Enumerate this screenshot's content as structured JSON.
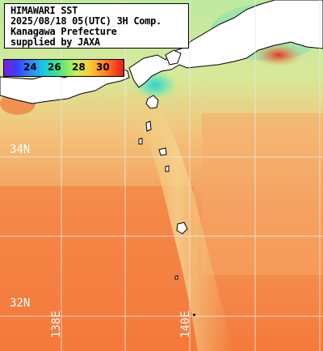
{
  "header": {
    "line1": "HIMAWARI SST",
    "line2": "2025/08/18 05(UTC) 3H Comp.",
    "line3": "Kanagawa Prefecture",
    "line4": "supplied by JAXA"
  },
  "colorbar": {
    "labels": [
      "24",
      "26",
      "28",
      "30"
    ],
    "colors": [
      "#7a1fd6",
      "#2d7bff",
      "#19c6e6",
      "#7fe86a",
      "#f5d23a",
      "#ff6a1e",
      "#e81c1c"
    ]
  },
  "grid": {
    "lat_labels": [
      "34N",
      "32N"
    ],
    "lon_labels": [
      "138E",
      "140E"
    ]
  },
  "colors": {
    "land": "#ffffff",
    "coast": "#000000",
    "grid": "#e8e8e8",
    "warm_sea": "#f28040",
    "mid_sea": "#f6b872",
    "cool_sea": "#c9ef8a",
    "cold_sea": "#4fd8c8"
  }
}
